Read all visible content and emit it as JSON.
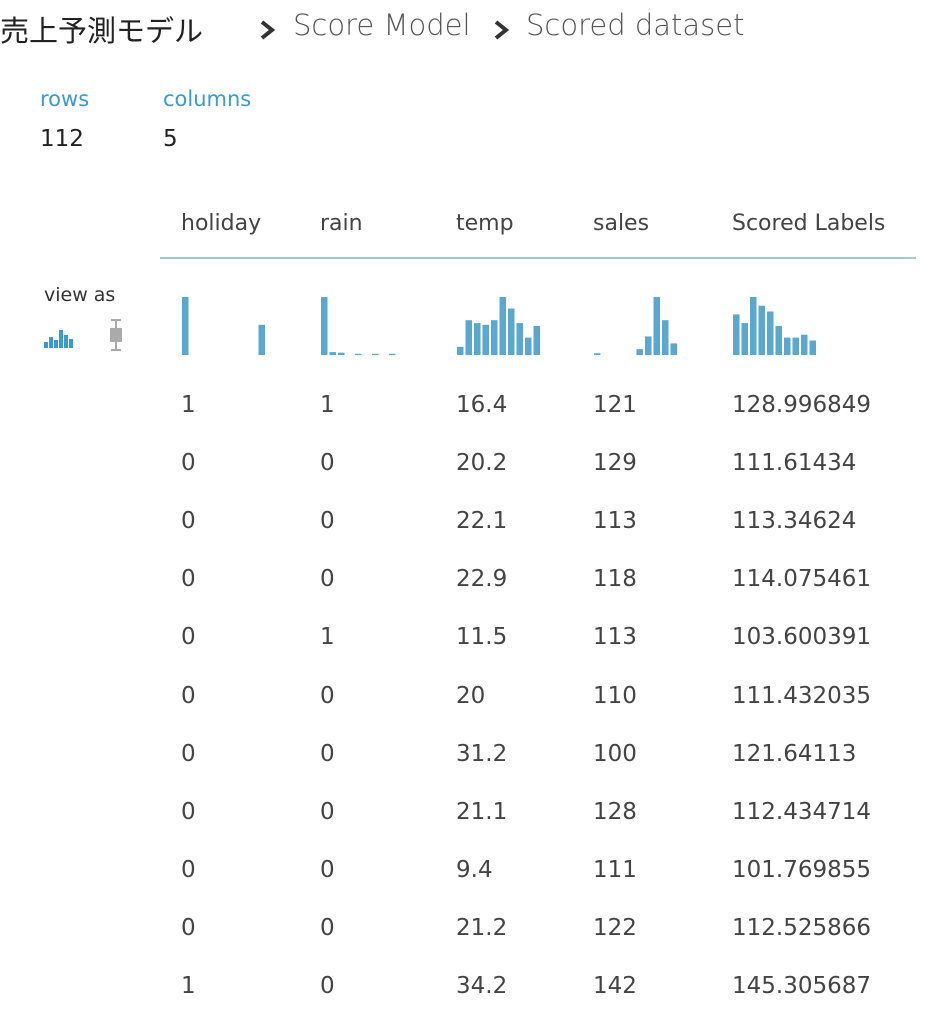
{
  "breadcrumb": [
    "売上予測モデル",
    "Score Model",
    "Scored dataset"
  ],
  "stats": [
    {
      "label": "rows",
      "value": "112"
    },
    {
      "label": "columns",
      "value": "5"
    }
  ],
  "view_as": "view as",
  "table": {
    "columns": [
      "holiday",
      "rain",
      "temp",
      "sales",
      "Scored Labels"
    ],
    "histograms": [
      [
        100,
        0,
        0,
        0,
        0,
        0,
        0,
        0,
        0,
        52
      ],
      [
        100,
        5,
        4,
        0,
        2,
        0,
        2,
        0,
        2,
        0
      ],
      [
        14,
        60,
        55,
        52,
        60,
        100,
        80,
        55,
        30,
        50
      ],
      [
        3,
        0,
        0,
        0,
        0,
        10,
        32,
        100,
        60,
        20
      ],
      [
        70,
        55,
        100,
        85,
        75,
        50,
        30,
        30,
        35,
        25
      ]
    ],
    "rows": [
      [
        "1",
        "1",
        "16.4",
        "121",
        "128.996849"
      ],
      [
        "0",
        "0",
        "20.2",
        "129",
        "111.61434"
      ],
      [
        "0",
        "0",
        "22.1",
        "113",
        "113.34624"
      ],
      [
        "0",
        "0",
        "22.9",
        "118",
        "114.075461"
      ],
      [
        "0",
        "1",
        "11.5",
        "113",
        "103.600391"
      ],
      [
        "0",
        "0",
        "20",
        "110",
        "111.432035"
      ],
      [
        "0",
        "0",
        "31.2",
        "100",
        "121.64113"
      ],
      [
        "0",
        "0",
        "21.1",
        "128",
        "112.434714"
      ],
      [
        "0",
        "0",
        "9.4",
        "111",
        "101.769855"
      ],
      [
        "0",
        "0",
        "21.2",
        "122",
        "112.525866"
      ],
      [
        "1",
        "0",
        "34.2",
        "142",
        "145.305687"
      ]
    ]
  }
}
